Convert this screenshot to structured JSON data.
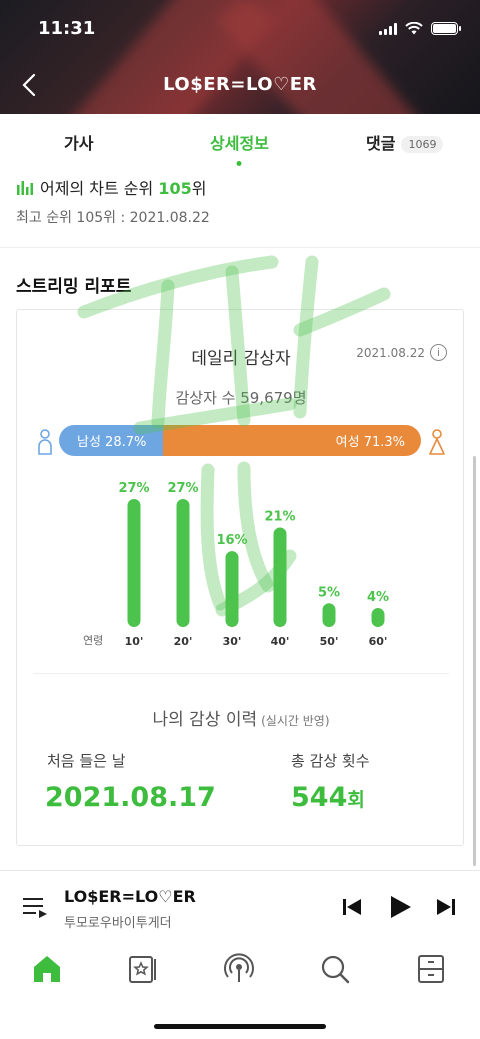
{
  "status": {
    "time": "11:31"
  },
  "header": {
    "title": "LO$ER=LO♡ER"
  },
  "tabs": [
    {
      "label": "가사",
      "active": false
    },
    {
      "label": "상세정보",
      "active": true
    },
    {
      "label": "댓글",
      "badge": "1069",
      "active": false
    }
  ],
  "chart_rank": {
    "prefix": "어제의 차트 순위 ",
    "rank": "105",
    "suffix": "위",
    "peak": "최고 순위 105위 : 2021.08.22"
  },
  "report": {
    "section_title": "스트리밍 리포트",
    "daily_title": "데일리 감상자",
    "date": "2021.08.22",
    "info_glyph": "i",
    "listeners": "감상자 수 59,679명",
    "male_label": "남성 28.7%",
    "female_label": "여성 71.3%",
    "male_pct": 28.7,
    "female_pct": 71.3,
    "age_axis_label": "연령"
  },
  "chart_data": {
    "type": "bar",
    "categories": [
      "10'",
      "20'",
      "30'",
      "40'",
      "50'",
      "60'"
    ],
    "values": [
      27,
      27,
      16,
      21,
      5,
      4
    ],
    "value_labels": [
      "27%",
      "27%",
      "16%",
      "21%",
      "5%",
      "4%"
    ],
    "color": "#4cc34c"
  },
  "my_history": {
    "title": "나의 감상 이력",
    "subtitle": "(실시간 반영)",
    "first_label": "처음 들은 날",
    "first_value": "2021.08.17",
    "count_label": "총 감상 횟수",
    "count_value": "544",
    "count_unit": "회"
  },
  "player": {
    "title": "LO$ER=LO♡ER",
    "artist": "투모로우바이투게더"
  },
  "colors": {
    "accent": "#3dbc3d",
    "male": "#6ea6e2",
    "female": "#e88a3a"
  }
}
